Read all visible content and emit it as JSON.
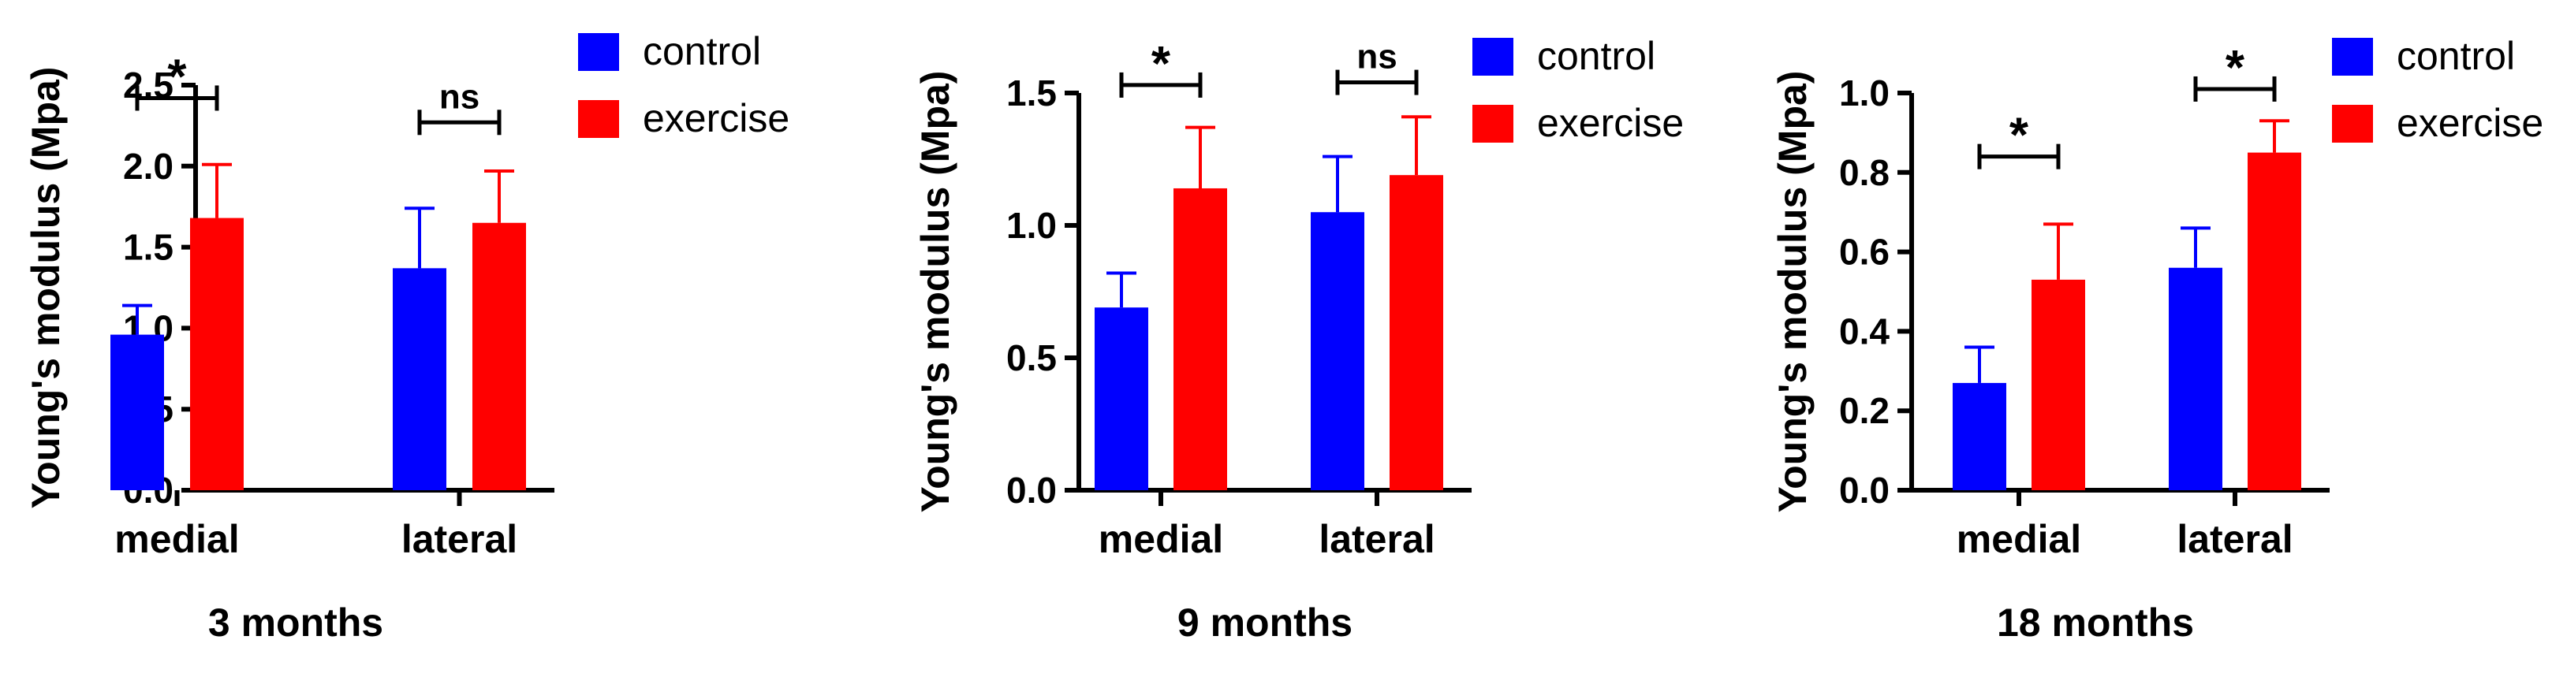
{
  "colors": {
    "control": "#0000ff",
    "exercise": "#ff0000",
    "axis": "#000000"
  },
  "chart_data": [
    {
      "type": "bar",
      "title": "3 months",
      "ylabel": "Young's modulus (Mpa)",
      "xlabel": "",
      "categories": [
        "medial",
        "lateral"
      ],
      "ylim": [
        0,
        2.5
      ],
      "yticks": [
        "0.0",
        "0.5",
        "1.0",
        "1.5",
        "2.0",
        "2.5"
      ],
      "series": [
        {
          "name": "control",
          "values": [
            0.96,
            1.37
          ],
          "errors": [
            0.18,
            0.37
          ]
        },
        {
          "name": "exercise",
          "values": [
            1.68,
            1.65
          ],
          "errors": [
            0.33,
            0.32
          ]
        }
      ],
      "significance": [
        {
          "category": "medial",
          "label": "*",
          "y": 2.42
        },
        {
          "category": "lateral",
          "label": "ns",
          "y": 2.27
        }
      ],
      "legend": "top-right"
    },
    {
      "type": "bar",
      "title": "9 months",
      "ylabel": "Young's modulus (Mpa)",
      "xlabel": "",
      "categories": [
        "medial",
        "lateral"
      ],
      "ylim": [
        0,
        1.5
      ],
      "yticks": [
        "0.0",
        "0.5",
        "1.0",
        "1.5"
      ],
      "series": [
        {
          "name": "control",
          "values": [
            0.69,
            1.05
          ],
          "errors": [
            0.13,
            0.21
          ]
        },
        {
          "name": "exercise",
          "values": [
            1.14,
            1.19
          ],
          "errors": [
            0.23,
            0.22
          ]
        }
      ],
      "significance": [
        {
          "category": "medial",
          "label": "*",
          "y": 1.53
        },
        {
          "category": "lateral",
          "label": "ns",
          "y": 1.54
        }
      ],
      "legend": "top-right"
    },
    {
      "type": "bar",
      "title": "18 months",
      "ylabel": "Young's modulus (Mpa)",
      "xlabel": "",
      "categories": [
        "medial",
        "lateral"
      ],
      "ylim": [
        0,
        1.0
      ],
      "yticks": [
        "0.0",
        "0.2",
        "0.4",
        "0.6",
        "0.8",
        "1.0"
      ],
      "series": [
        {
          "name": "control",
          "values": [
            0.27,
            0.56
          ],
          "errors": [
            0.09,
            0.1
          ]
        },
        {
          "name": "exercise",
          "values": [
            0.53,
            0.85
          ],
          "errors": [
            0.14,
            0.08
          ]
        }
      ],
      "significance": [
        {
          "category": "medial",
          "label": "*",
          "y": 0.84
        },
        {
          "category": "lateral",
          "label": "*",
          "y": 1.01
        }
      ],
      "legend": "top-right"
    }
  ]
}
